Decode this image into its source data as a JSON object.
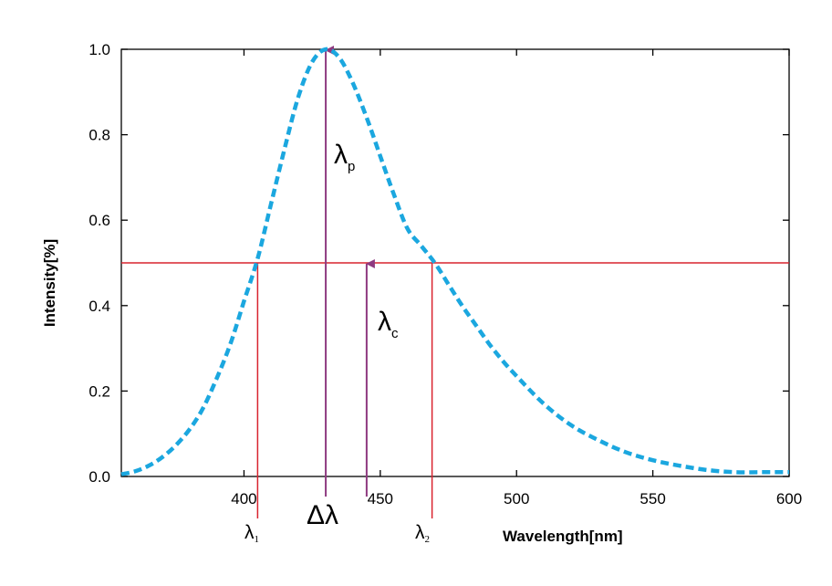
{
  "chart_data": {
    "type": "line",
    "title": "",
    "xlabel": "Wavelength[nm]",
    "ylabel": "Intensity[%]",
    "xlim": [
      355,
      600
    ],
    "ylim": [
      0.0,
      1.0
    ],
    "x_ticks": [
      400,
      450,
      500,
      550,
      600
    ],
    "x_tick_labels": [
      "400",
      "450",
      "500",
      "550",
      "600"
    ],
    "y_ticks": [
      0.0,
      0.2,
      0.4,
      0.6,
      0.8,
      1.0
    ],
    "y_tick_labels": [
      "0.0",
      "0.2",
      "0.4",
      "0.6",
      "0.8",
      "1.0"
    ],
    "grid": false,
    "series": [
      {
        "style": "dashed",
        "color": "#1ba7df",
        "x": [
          355,
          360,
          365,
          370,
          375,
          380,
          385,
          390,
          395,
          400,
          405,
          410,
          415,
          420,
          425,
          430,
          435,
          440,
          445,
          450,
          455,
          460,
          465,
          470,
          475,
          480,
          485,
          490,
          495,
          500,
          510,
          520,
          530,
          540,
          550,
          560,
          570,
          580,
          590,
          600
        ],
        "y": [
          0.005,
          0.012,
          0.025,
          0.045,
          0.073,
          0.11,
          0.16,
          0.23,
          0.31,
          0.41,
          0.51,
          0.64,
          0.77,
          0.89,
          0.97,
          1.0,
          0.98,
          0.92,
          0.84,
          0.75,
          0.66,
          0.58,
          0.54,
          0.5,
          0.45,
          0.4,
          0.355,
          0.31,
          0.27,
          0.235,
          0.17,
          0.12,
          0.085,
          0.057,
          0.038,
          0.025,
          0.015,
          0.01,
          0.01,
          0.01
        ]
      }
    ],
    "half_max_line": {
      "y": 0.5,
      "color": "#d9232e"
    },
    "markers": {
      "lambda1": {
        "x": 405,
        "color": "#d9232e",
        "label": "λ",
        "sub": "1"
      },
      "lambda2": {
        "x": 469,
        "color": "#d9232e",
        "label": "λ",
        "sub": "2"
      },
      "lambda_p": {
        "x": 430,
        "y": 1.0,
        "color": "#8e3a80",
        "label": "λ",
        "sub": "p"
      },
      "lambda_c": {
        "x": 445,
        "y": 0.5,
        "color": "#8e3a80",
        "label": "λ",
        "sub": "c"
      },
      "delta_lambda": {
        "label": "Δλ"
      }
    }
  }
}
